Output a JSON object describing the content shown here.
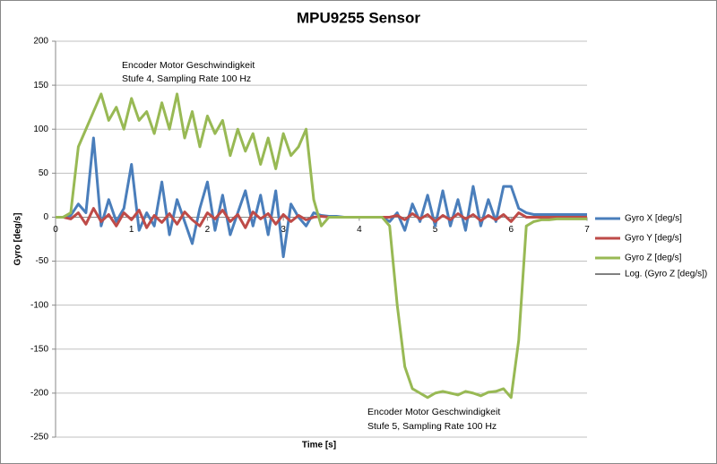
{
  "chart_data": {
    "type": "line",
    "title": "MPU9255 Sensor",
    "x_label": "Time [s]",
    "y_label": "Gyro [deg/s]",
    "annotations": [
      "Encoder Motor Geschwindigkeit",
      "Stufe 4, Sampling Rate 100 Hz",
      "Encoder Motor Geschwindigkeit",
      "Stufe 5, Sampling Rate 100 Hz"
    ],
    "x": [
      0,
      0.1,
      0.2,
      0.3,
      0.4,
      0.5,
      0.6,
      0.7,
      0.8,
      0.9,
      1,
      1.1,
      1.2,
      1.3,
      1.4,
      1.5,
      1.6,
      1.7,
      1.8,
      1.9,
      2,
      2.1,
      2.2,
      2.3,
      2.4,
      2.5,
      2.6,
      2.7,
      2.8,
      2.9,
      3,
      3.1,
      3.2,
      3.3,
      3.4,
      3.5,
      3.6,
      3.7,
      3.8,
      3.9,
      4,
      4.1,
      4.2,
      4.3,
      4.4,
      4.5,
      4.6,
      4.7,
      4.8,
      4.9,
      5,
      5.1,
      5.2,
      5.3,
      5.4,
      5.5,
      5.6,
      5.7,
      5.8,
      5.9,
      6,
      6.1,
      6.2,
      6.3,
      6.4,
      6.5,
      6.6,
      6.7,
      6.8,
      6.9,
      7
    ],
    "series": [
      {
        "name": "Gyro X [deg/s]",
        "color": "#4a7ebb",
        "width": 3,
        "values": [
          0,
          0,
          2,
          15,
          5,
          90,
          -10,
          20,
          -5,
          10,
          60,
          -15,
          5,
          -10,
          40,
          -20,
          20,
          -5,
          -30,
          10,
          40,
          -15,
          25,
          -20,
          5,
          30,
          -10,
          25,
          -20,
          30,
          -45,
          15,
          0,
          -10,
          5,
          2,
          1,
          1,
          0,
          0,
          0,
          0,
          0,
          0,
          -5,
          5,
          -15,
          15,
          -5,
          25,
          -10,
          30,
          -10,
          20,
          -15,
          35,
          -10,
          20,
          -5,
          35,
          35,
          10,
          5,
          3,
          3,
          3,
          3,
          3,
          3,
          3,
          3
        ]
      },
      {
        "name": "Gyro Y [deg/s]",
        "color": "#be4b48",
        "width": 3,
        "values": [
          0,
          0,
          -2,
          5,
          -8,
          10,
          -5,
          3,
          -10,
          5,
          -3,
          8,
          -12,
          2,
          -6,
          4,
          -8,
          6,
          -3,
          -10,
          5,
          -2,
          8,
          -5,
          3,
          -12,
          6,
          -2,
          4,
          -8,
          3,
          -5,
          2,
          -3,
          0,
          1,
          0,
          0,
          0,
          0,
          0,
          0,
          0,
          0,
          0,
          2,
          -3,
          4,
          -2,
          3,
          -5,
          2,
          -3,
          4,
          -2,
          3,
          -4,
          2,
          -3,
          3,
          -5,
          5,
          0,
          0,
          0,
          0,
          0,
          0,
          0,
          0,
          0
        ]
      },
      {
        "name": "Gyro Z [deg/s]",
        "color": "#98b954",
        "width": 3,
        "values": [
          0,
          0,
          5,
          80,
          100,
          120,
          140,
          110,
          125,
          100,
          135,
          110,
          120,
          95,
          130,
          100,
          140,
          90,
          120,
          80,
          115,
          95,
          110,
          70,
          100,
          75,
          95,
          60,
          90,
          55,
          95,
          70,
          80,
          100,
          20,
          -10,
          0,
          0,
          0,
          0,
          0,
          0,
          0,
          0,
          -10,
          -100,
          -170,
          -195,
          -200,
          -205,
          -200,
          -198,
          -200,
          -202,
          -198,
          -200,
          -203,
          -199,
          -198,
          -195,
          -205,
          -140,
          -10,
          -5,
          -3,
          -3,
          -2,
          -2,
          -2,
          -2,
          -2
        ]
      },
      {
        "name": "Log. (Gyro Z [deg/s])",
        "color": "#000000",
        "width": 1,
        "values": [
          null,
          null,
          null,
          null,
          null,
          null,
          null,
          null,
          null,
          null,
          null,
          null,
          null,
          null,
          null,
          null,
          null,
          null,
          null,
          null,
          null,
          null,
          null,
          null,
          null,
          null,
          null,
          null,
          null,
          null,
          null,
          null,
          null,
          null,
          null,
          null,
          null,
          null,
          null,
          null,
          null,
          null,
          null,
          null,
          null,
          null,
          null,
          null,
          null,
          null,
          null,
          null,
          null,
          null,
          null,
          null,
          null,
          null,
          null,
          null,
          null,
          null,
          null,
          null,
          null,
          null,
          null,
          null,
          null,
          null,
          null
        ]
      }
    ],
    "xlim": [
      0,
      7
    ],
    "xticks": [
      0,
      1,
      2,
      3,
      4,
      5,
      6,
      7
    ],
    "ylim": [
      -250,
      200
    ],
    "yticks": [
      -250,
      -200,
      -150,
      -100,
      -50,
      0,
      50,
      100,
      150,
      200
    ],
    "grid": true,
    "legend": "right"
  }
}
